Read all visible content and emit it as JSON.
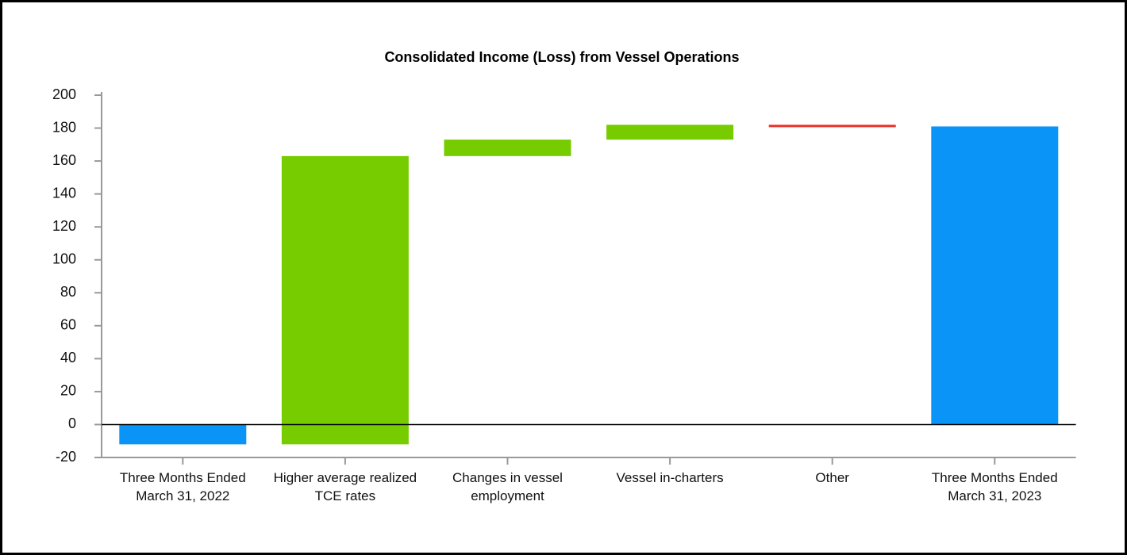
{
  "chart_data": {
    "type": "waterfall",
    "title": "Consolidated Income (Loss) from Vessel Operations",
    "categories": [
      "Three Months Ended March 31, 2022",
      "Higher average realized TCE rates",
      "Changes in vessel employment",
      "Vessel in-charters",
      "Other",
      "Three Months Ended March 31, 2023"
    ],
    "values": [
      -12,
      175,
      10,
      9,
      -1,
      181
    ],
    "totals": [
      true,
      false,
      false,
      false,
      false,
      true
    ],
    "colors": {
      "total": "#0a94f8",
      "increase": "#77cc00",
      "decrease": "#e8312a"
    },
    "ylim": [
      -20,
      200
    ],
    "yticks": [
      -20,
      0,
      20,
      40,
      60,
      80,
      100,
      120,
      140,
      160,
      180,
      200
    ]
  }
}
